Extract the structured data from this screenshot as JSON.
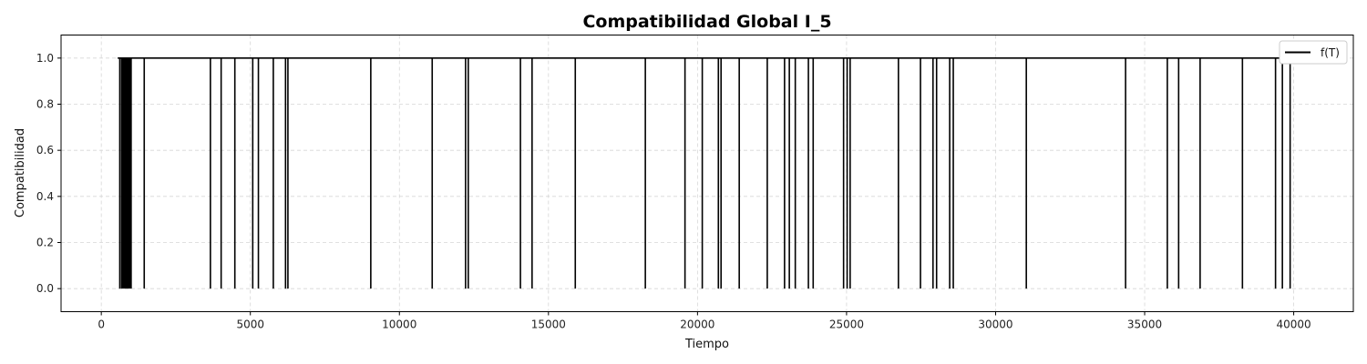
{
  "chart_data": {
    "type": "line",
    "title": "Compatibilidad Global I_5",
    "xlabel": "Tiempo",
    "ylabel": "Compatibilidad",
    "xlim": [
      -1350,
      42000
    ],
    "ylim": [
      -0.1,
      1.1
    ],
    "xticks": [
      0,
      5000,
      10000,
      15000,
      20000,
      25000,
      30000,
      35000,
      40000
    ],
    "yticks": [
      0.0,
      0.2,
      0.4,
      0.6,
      0.8,
      1.0
    ],
    "xtick_labels": [
      "0",
      "5000",
      "10000",
      "15000",
      "20000",
      "25000",
      "30000",
      "35000",
      "40000"
    ],
    "ytick_labels": [
      "0.0",
      "0.2",
      "0.4",
      "0.6",
      "0.8",
      "1.0"
    ],
    "grid": true,
    "legend_position": "top-right",
    "series": [
      {
        "name": "f(T)",
        "color": "#000000",
        "baseline": 1.0,
        "x_start": 550,
        "x_end": 39950,
        "dips_to_zero_at": [
          620,
          680,
          720,
          760,
          800,
          840,
          880,
          920,
          960,
          1000,
          1440,
          3660,
          4020,
          4480,
          5080,
          5270,
          5770,
          6180,
          6260,
          9040,
          11100,
          12220,
          12310,
          14060,
          14450,
          15900,
          18250,
          19580,
          20160,
          20700,
          20790,
          21400,
          22340,
          22920,
          23080,
          23280,
          23720,
          23880,
          24900,
          25020,
          25120,
          26740,
          27480,
          27900,
          28020,
          28460,
          28580,
          31030,
          34360,
          35760,
          36140,
          36860,
          38280,
          39390,
          39620,
          39880
        ]
      }
    ]
  }
}
